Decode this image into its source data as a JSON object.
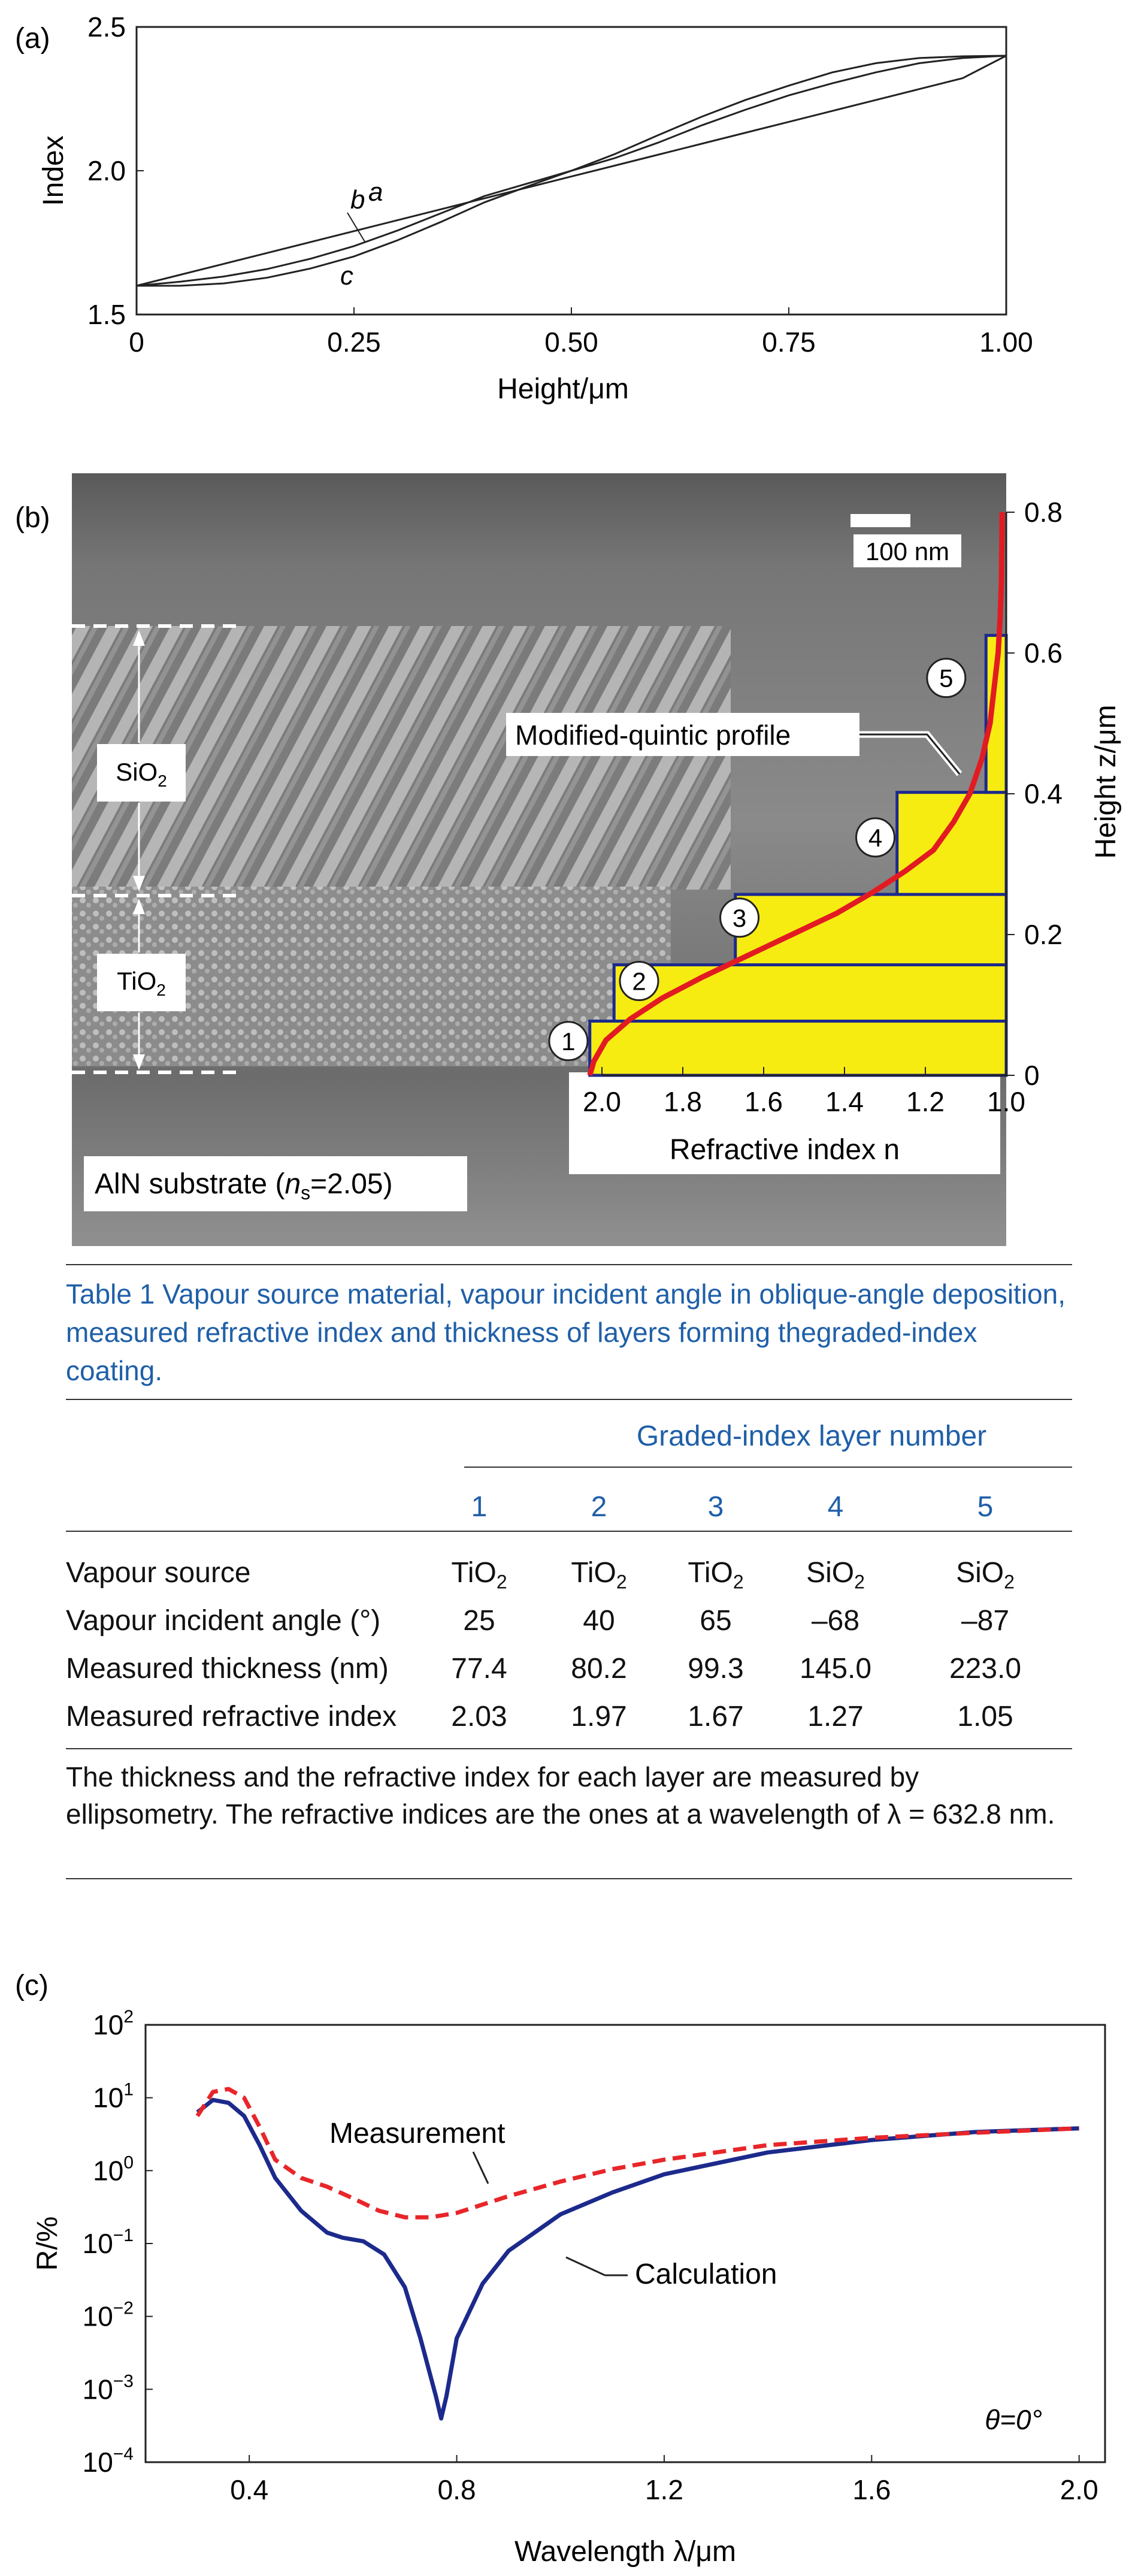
{
  "panels": {
    "a": {
      "label": "(a)",
      "chart_data": {
        "type": "line",
        "xlabel": "Height/μm",
        "ylabel": "Index",
        "xlim": [
          0,
          1.0
        ],
        "ylim": [
          1.5,
          2.5
        ],
        "xticks": [
          "0",
          "0.25",
          "0.50",
          "0.75",
          "1.00"
        ],
        "yticks": [
          "1.5",
          "2.0",
          "2.5"
        ],
        "series": [
          {
            "name": "a",
            "x": [
              0,
              0.05,
              0.1,
              0.15,
              0.2,
              0.25,
              0.3,
              0.35,
              0.4,
              0.45,
              0.5,
              0.55,
              0.6,
              0.65,
              0.7,
              0.75,
              0.8,
              0.85,
              0.9,
              0.95,
              1.0
            ],
            "y": [
              1.6,
              1.638,
              1.676,
              1.714,
              1.752,
              1.79,
              1.828,
              1.866,
              1.904,
              1.942,
              1.98,
              2.018,
              2.056,
              2.094,
              2.132,
              2.17,
              2.208,
              2.246,
              2.284,
              2.322,
              2.4
            ]
          },
          {
            "name": "b",
            "x": [
              0,
              0.05,
              0.1,
              0.15,
              0.2,
              0.25,
              0.3,
              0.35,
              0.4,
              0.45,
              0.5,
              0.55,
              0.6,
              0.65,
              0.7,
              0.75,
              0.8,
              0.85,
              0.9,
              0.95,
              1.0
            ],
            "y": [
              1.6,
              1.614,
              1.632,
              1.658,
              1.694,
              1.738,
              1.792,
              1.852,
              1.912,
              1.956,
              2.0,
              2.044,
              2.098,
              2.158,
              2.212,
              2.262,
              2.304,
              2.342,
              2.374,
              2.392,
              2.4
            ]
          },
          {
            "name": "c",
            "x": [
              0,
              0.05,
              0.1,
              0.15,
              0.2,
              0.25,
              0.3,
              0.35,
              0.4,
              0.45,
              0.5,
              0.55,
              0.6,
              0.65,
              0.7,
              0.75,
              0.8,
              0.85,
              0.9,
              0.95,
              1.0
            ],
            "y": [
              1.6,
              1.6,
              1.608,
              1.628,
              1.66,
              1.702,
              1.758,
              1.822,
              1.89,
              1.946,
              2.0,
              2.058,
              2.124,
              2.188,
              2.246,
              2.296,
              2.342,
              2.374,
              2.392,
              2.398,
              2.4
            ]
          }
        ],
        "annotations": [
          "a",
          "b",
          "c"
        ]
      }
    },
    "b": {
      "label": "(b)",
      "scale_bar": "100  nm",
      "layer_labels": [
        {
          "text": "SiO",
          "sub": "2"
        },
        {
          "text": "TiO",
          "sub": "2"
        }
      ],
      "substrate": {
        "prefix": "AlN substrate (",
        "var": "n",
        "sub": "s",
        "suffix": "=2.05)"
      },
      "profile_label": "Modified-quintic profile",
      "chart_data": {
        "type": "bar",
        "xlabel": "Refractive index n",
        "ylabel": "Height z/μm",
        "xlim": [
          2.0,
          1.0
        ],
        "ylim": [
          0,
          0.8
        ],
        "xticks": [
          "2.0",
          "1.8",
          "1.6",
          "1.4",
          "1.2",
          "1.0"
        ],
        "yticks": [
          "0",
          "0.2",
          "0.4",
          "0.6",
          "0.8"
        ],
        "layers": [
          {
            "num": "1",
            "n": 2.03,
            "z0": 0.0,
            "z1": 0.077
          },
          {
            "num": "2",
            "n": 1.97,
            "z0": 0.077,
            "z1": 0.157
          },
          {
            "num": "3",
            "n": 1.67,
            "z0": 0.157,
            "z1": 0.257
          },
          {
            "num": "4",
            "n": 1.27,
            "z0": 0.257,
            "z1": 0.402
          },
          {
            "num": "5",
            "n": 1.05,
            "z0": 0.402,
            "z1": 0.625
          }
        ],
        "profile": {
          "name": "Modified-quintic profile",
          "n": [
            2.03,
            2.02,
            1.99,
            1.93,
            1.85,
            1.75,
            1.64,
            1.53,
            1.42,
            1.33,
            1.25,
            1.18,
            1.13,
            1.09,
            1.06,
            1.04,
            1.03,
            1.02,
            1.015,
            1.012,
            1.01
          ],
          "z": [
            0.0,
            0.02,
            0.05,
            0.08,
            0.11,
            0.14,
            0.17,
            0.2,
            0.23,
            0.26,
            0.29,
            0.32,
            0.36,
            0.4,
            0.45,
            0.5,
            0.55,
            0.6,
            0.65,
            0.7,
            0.8
          ]
        }
      }
    },
    "table": {
      "caption": "Table 1 Vapour source material, vapour incident angle in oblique-angle deposition, measured refractive index and thickness of layers forming thegraded-index coating.",
      "group_header": "Graded-index layer number",
      "columns": [
        "1",
        "2",
        "3",
        "4",
        "5"
      ],
      "rows": [
        {
          "label": "Vapour source",
          "cells": [
            [
              "TiO",
              "2"
            ],
            [
              "TiO",
              "2"
            ],
            [
              "TiO",
              "2"
            ],
            [
              "SiO",
              "2"
            ],
            [
              "SiO",
              "2"
            ]
          ]
        },
        {
          "label": "Vapour incident angle (°)",
          "cells": [
            [
              "25",
              ""
            ],
            [
              "40",
              ""
            ],
            [
              "65",
              ""
            ],
            [
              "–68",
              ""
            ],
            [
              "–87",
              ""
            ]
          ]
        },
        {
          "label": "Measured thickness (nm)",
          "cells": [
            [
              "77.4",
              ""
            ],
            [
              "80.2",
              ""
            ],
            [
              "99.3",
              ""
            ],
            [
              "145.0",
              ""
            ],
            [
              "223.0",
              ""
            ]
          ]
        },
        {
          "label": "Measured refractive index",
          "cells": [
            [
              "2.03",
              ""
            ],
            [
              "1.97",
              ""
            ],
            [
              "1.67",
              ""
            ],
            [
              "1.27",
              ""
            ],
            [
              "1.05",
              ""
            ]
          ]
        }
      ],
      "footnote": "The thickness and the refractive index for each layer are measured by ellipsometry. The refractive indices are the ones at a wavelength of λ = 632.8 nm."
    },
    "c": {
      "label": "(c)",
      "angle_note": "θ=0°",
      "chart_data": {
        "type": "line",
        "xlabel": "Wavelength λ/μm",
        "ylabel": "R/%",
        "xlim": [
          0.2,
          2.05
        ],
        "ylim_log10": [
          -4,
          2
        ],
        "yscale": "log",
        "xticks": [
          "0.4",
          "0.8",
          "1.2",
          "1.6",
          "2.0"
        ],
        "ytick_exponents": [
          "2",
          "1",
          "0",
          "-1",
          "-2",
          "-3",
          "-4"
        ],
        "series": [
          {
            "name": "Measurement",
            "color": "#e8262a",
            "style": "dashed",
            "x": [
              0.3,
              0.33,
              0.36,
              0.39,
              0.42,
              0.45,
              0.5,
              0.55,
              0.6,
              0.65,
              0.7,
              0.75,
              0.8,
              0.9,
              1.0,
              1.1,
              1.2,
              1.4,
              1.6,
              1.8,
              2.0
            ],
            "log10y": [
              0.75,
              1.08,
              1.12,
              1.0,
              0.6,
              0.15,
              -0.1,
              -0.22,
              -0.38,
              -0.55,
              -0.64,
              -0.64,
              -0.58,
              -0.35,
              -0.15,
              0.02,
              0.15,
              0.35,
              0.45,
              0.52,
              0.58
            ]
          },
          {
            "name": "Calculation",
            "color": "#1c2a8c",
            "style": "solid",
            "x": [
              0.3,
              0.33,
              0.36,
              0.39,
              0.42,
              0.45,
              0.5,
              0.55,
              0.58,
              0.62,
              0.66,
              0.7,
              0.73,
              0.76,
              0.77,
              0.78,
              0.8,
              0.85,
              0.9,
              1.0,
              1.1,
              1.2,
              1.4,
              1.6,
              1.8,
              2.0
            ],
            "log10y": [
              0.8,
              0.97,
              0.93,
              0.75,
              0.35,
              -0.1,
              -0.55,
              -0.85,
              -0.92,
              -0.97,
              -1.15,
              -1.6,
              -2.3,
              -3.1,
              -3.4,
              -3.1,
              -2.3,
              -1.55,
              -1.1,
              -0.6,
              -0.3,
              -0.05,
              0.25,
              0.42,
              0.53,
              0.58
            ]
          }
        ]
      }
    }
  }
}
